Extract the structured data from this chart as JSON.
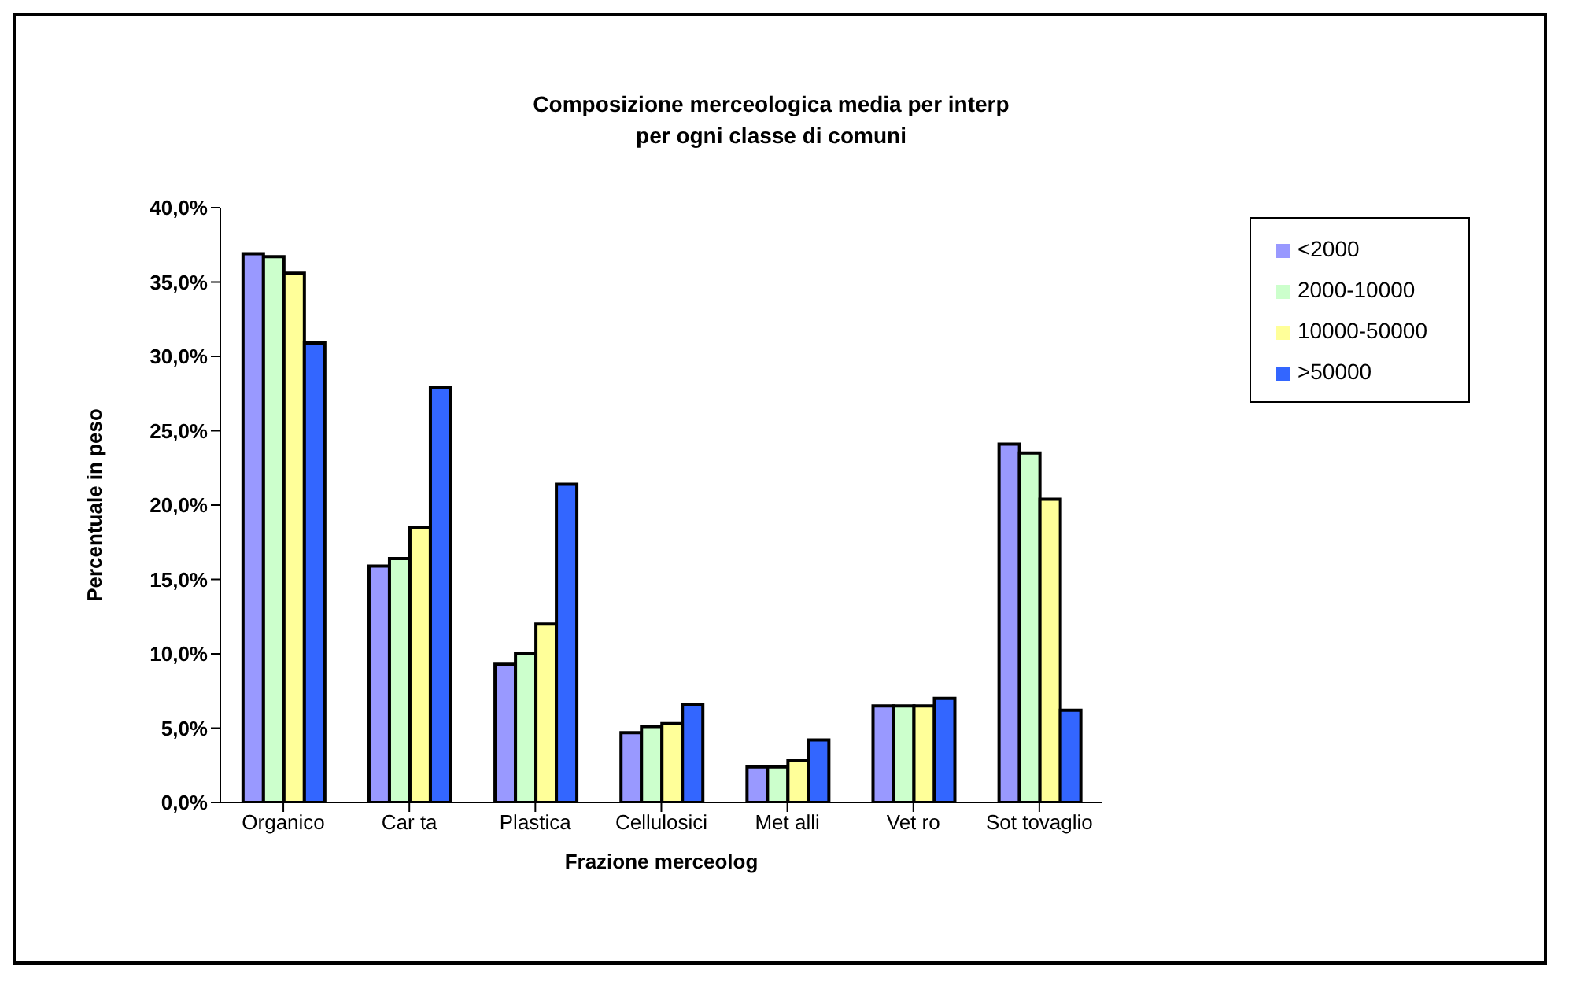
{
  "chart_data": {
    "type": "bar",
    "title": "Composizione merceologica media  per interp\nper ogni classe di comuni",
    "xlabel": "Frazione merceolog",
    "ylabel": "Percentuale in peso",
    "categories": [
      "Organico",
      "Car ta",
      "Plastica",
      "Cellulosici",
      "Met alli",
      "Vet ro",
      "Sot tovaglio"
    ],
    "series": [
      {
        "name": "<2000",
        "color": "#9999ff",
        "values": [
          36.9,
          15.9,
          9.3,
          4.7,
          2.4,
          6.5,
          24.1
        ]
      },
      {
        "name": "2000-10000",
        "color": "#ccffcc",
        "values": [
          36.7,
          16.4,
          10.0,
          5.1,
          2.4,
          6.5,
          23.5
        ]
      },
      {
        "name": "10000-50000",
        "color": "#ffff99",
        "values": [
          35.6,
          18.5,
          12.0,
          5.3,
          2.8,
          6.5,
          20.4
        ]
      },
      {
        "name": ">50000",
        "color": "#3366ff",
        "values": [
          30.9,
          27.9,
          21.4,
          6.6,
          4.2,
          7.0,
          6.2
        ]
      }
    ],
    "ylim": [
      0,
      40
    ],
    "yticks": [
      {
        "value": 0,
        "label": "0,0%"
      },
      {
        "value": 5,
        "label": "5,0%"
      },
      {
        "value": 10,
        "label": "10,0%"
      },
      {
        "value": 15,
        "label": "15,0%"
      },
      {
        "value": 20,
        "label": "20,0%"
      },
      {
        "value": 25,
        "label": "25,0%"
      },
      {
        "value": 30,
        "label": "30,0%"
      },
      {
        "value": 35,
        "label": "35,0%"
      },
      {
        "value": 40,
        "label": "40,0%"
      }
    ],
    "grid": false,
    "legend": "top right"
  }
}
